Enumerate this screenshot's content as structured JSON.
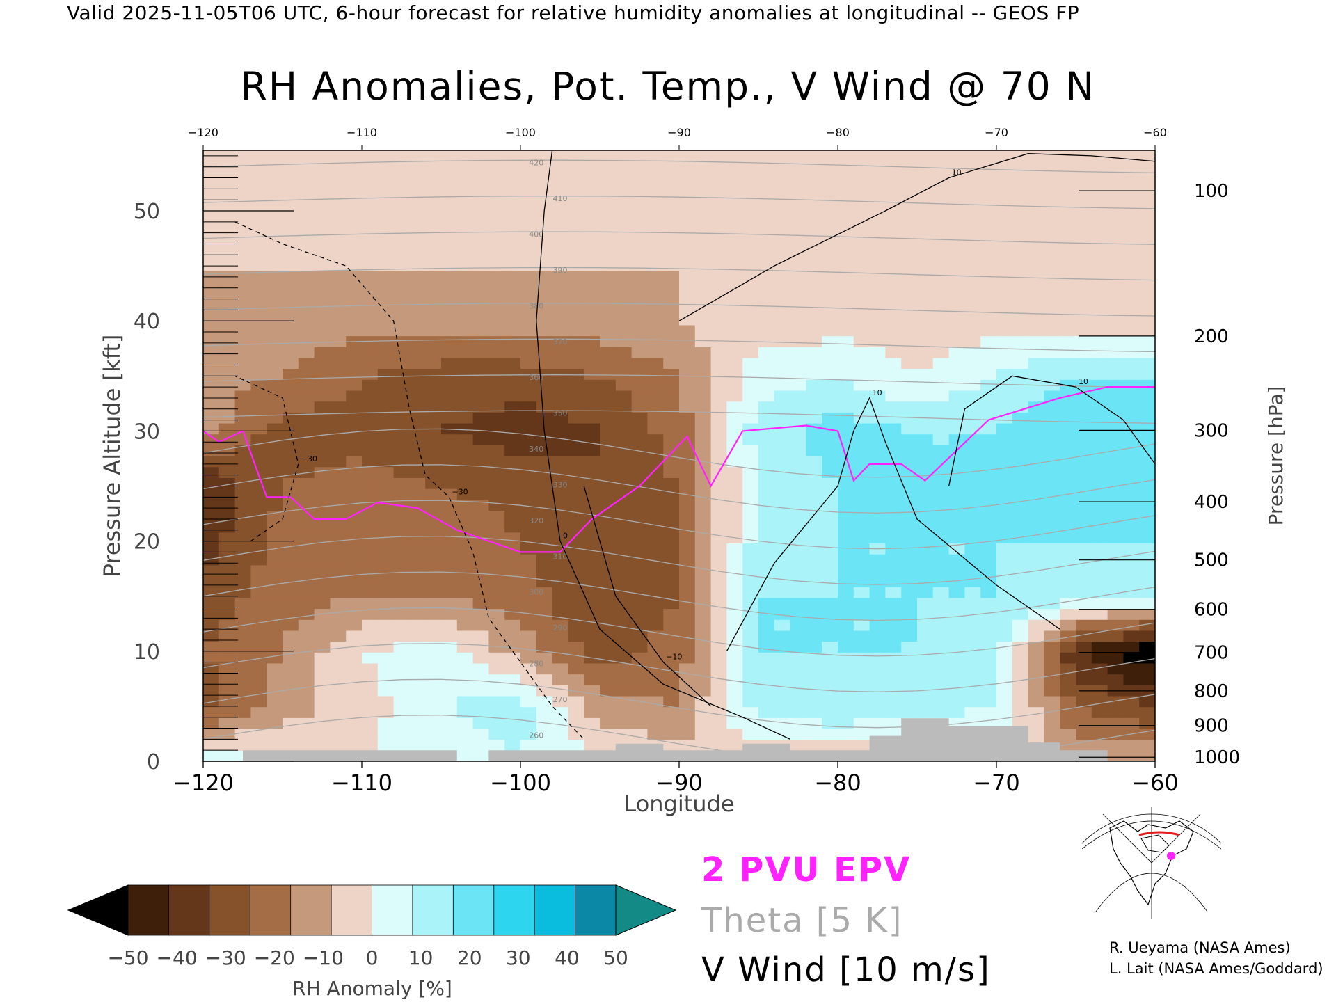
{
  "header": "Valid 2025-11-05T06 UTC, 6-hour forecast for relative humidity anomalies at longitudinal -- GEOS FP",
  "chart_data": {
    "type": "heatmap",
    "title": "RH Anomalies, Pot. Temp., V Wind @ 70 N",
    "xlabel": "Longitude",
    "ylabel": "Pressure Altitude [kft]",
    "y2label": "Pressure [hPa]",
    "xlim": [
      -120,
      -60
    ],
    "ylim": [
      0,
      55.5
    ],
    "x_ticks": [
      -120,
      -110,
      -100,
      -90,
      -80,
      -70,
      -60
    ],
    "x_tick_labels": [
      "−120",
      "−110",
      "−100",
      "−90",
      "−80",
      "−70",
      "−60"
    ],
    "x_top_tick_labels": [
      "−120",
      "−110",
      "−100",
      "−90",
      "−80",
      "−70",
      "−60"
    ],
    "y_ticks": [
      0,
      10,
      20,
      30,
      40,
      50
    ],
    "y_tick_labels": [
      "0",
      "10",
      "20",
      "30",
      "40",
      "50"
    ],
    "pressure_ticks": [
      {
        "hpa": 100,
        "label": "100"
      },
      {
        "hpa": 200,
        "label": "200"
      },
      {
        "hpa": 300,
        "label": "300"
      },
      {
        "hpa": 400,
        "label": "400"
      },
      {
        "hpa": 500,
        "label": "500"
      },
      {
        "hpa": 600,
        "label": "600"
      },
      {
        "hpa": 700,
        "label": "700"
      },
      {
        "hpa": 800,
        "label": "800"
      },
      {
        "hpa": 900,
        "label": "900"
      },
      {
        "hpa": 1000,
        "label": "1000"
      }
    ],
    "colorbar": {
      "label": "RH Anomaly [%]",
      "ticks": [
        -50,
        -40,
        -30,
        -20,
        -10,
        0,
        10,
        20,
        30,
        40,
        50
      ],
      "tick_labels": [
        "−50",
        "−40",
        "−30",
        "−20",
        "−10",
        "0",
        "10",
        "20",
        "30",
        "40",
        "50"
      ],
      "colors": [
        "#3e1f0a",
        "#64361a",
        "#86522b",
        "#a56d45",
        "#c59a7c",
        "#eed4c6",
        "#dcfbfb",
        "#a9f3f9",
        "#6be5f5",
        "#2dd5ef",
        "#0abcde",
        "#0a88a6"
      ],
      "under_color": "#000000",
      "over_color": "#138a86"
    },
    "rh_anomaly_grid": {
      "x": [
        -120,
        -115,
        -110,
        -105,
        -100,
        -95,
        -90,
        -85,
        -80,
        -75,
        -70,
        -65,
        -60
      ],
      "y": [
        0,
        5,
        10,
        15,
        20,
        25,
        30,
        35,
        40,
        45,
        50,
        55
      ],
      "values": [
        [
          15,
          15,
          10,
          15,
          20,
          10,
          5,
          0,
          0,
          0,
          0,
          0,
          0
        ],
        [
          -25,
          -5,
          5,
          20,
          25,
          -5,
          -10,
          25,
          30,
          25,
          20,
          -20,
          -30
        ],
        [
          -20,
          -10,
          10,
          15,
          -5,
          -25,
          -15,
          30,
          30,
          30,
          25,
          -40,
          -60
        ],
        [
          -25,
          -15,
          -10,
          -10,
          -15,
          -30,
          -20,
          30,
          30,
          30,
          30,
          25,
          20
        ],
        [
          -35,
          -15,
          -15,
          -10,
          -20,
          -30,
          -25,
          25,
          30,
          30,
          30,
          30,
          30
        ],
        [
          -40,
          -20,
          -15,
          -20,
          -25,
          -30,
          -20,
          20,
          30,
          30,
          30,
          35,
          35
        ],
        [
          -5,
          -25,
          -25,
          -30,
          -35,
          -30,
          -15,
          25,
          35,
          30,
          30,
          40,
          40
        ],
        [
          -5,
          -10,
          -20,
          -25,
          -25,
          -20,
          -10,
          15,
          20,
          10,
          20,
          30,
          30
        ],
        [
          -5,
          -5,
          -5,
          -5,
          -5,
          -5,
          0,
          5,
          5,
          5,
          5,
          5,
          5
        ],
        [
          0,
          0,
          0,
          0,
          0,
          0,
          0,
          0,
          0,
          0,
          0,
          0,
          0
        ],
        [
          0,
          0,
          0,
          0,
          0,
          0,
          0,
          0,
          0,
          0,
          0,
          0,
          0
        ],
        [
          0,
          0,
          0,
          0,
          0,
          0,
          0,
          0,
          0,
          0,
          0,
          0,
          0
        ]
      ]
    },
    "theta_contours": {
      "levels_k": [
        260,
        270,
        280,
        290,
        300,
        310,
        320,
        330,
        340,
        350,
        360,
        370,
        380,
        390,
        400,
        410,
        420
      ],
      "labels": [
        "260",
        "270",
        "280",
        "290",
        "300",
        "310",
        "320",
        "330",
        "340",
        "350",
        "360",
        "370",
        "380",
        "390",
        "400",
        "410",
        "420"
      ],
      "color": "#aaaaaa"
    },
    "epv_2pvu_line": {
      "color": "#ff22ff",
      "points": [
        [
          -120,
          30
        ],
        [
          -119,
          29
        ],
        [
          -117.5,
          30
        ],
        [
          -116,
          24
        ],
        [
          -114.5,
          24
        ],
        [
          -113,
          22
        ],
        [
          -111,
          22
        ],
        [
          -109,
          23.5
        ],
        [
          -106.5,
          23
        ],
        [
          -104,
          21
        ],
        [
          -100,
          19
        ],
        [
          -97.5,
          19
        ],
        [
          -95.5,
          22
        ],
        [
          -92.5,
          25
        ],
        [
          -89.5,
          29.5
        ],
        [
          -88,
          25
        ],
        [
          -86,
          30
        ],
        [
          -82,
          30.5
        ],
        [
          -80,
          30
        ],
        [
          -79,
          25.5
        ],
        [
          -78,
          27
        ],
        [
          -76,
          27
        ],
        [
          -74.5,
          25.5
        ],
        [
          -70.5,
          31
        ],
        [
          -66,
          33
        ],
        [
          -63,
          34
        ],
        [
          -60,
          34
        ]
      ]
    },
    "v_wind_contours": {
      "levels_ms": [
        -30,
        -10,
        0,
        10
      ],
      "labels": [
        "−30",
        "−10",
        "0",
        "10"
      ],
      "color": "#000000"
    },
    "terrain_color": "#bbbbbb",
    "terrain": [
      [
        -120,
        0
      ],
      [
        -117.5,
        0
      ],
      [
        -117.5,
        1
      ],
      [
        -104,
        1
      ],
      [
        -104,
        0
      ],
      [
        -102,
        0
      ],
      [
        -102,
        1
      ],
      [
        -94,
        1
      ],
      [
        -94,
        1.6
      ],
      [
        -91,
        1.6
      ],
      [
        -91,
        1
      ],
      [
        -86,
        1
      ],
      [
        -86,
        1.6
      ],
      [
        -83,
        1.6
      ],
      [
        -83,
        1
      ],
      [
        -78,
        1
      ],
      [
        -78,
        2.3
      ],
      [
        -76,
        2.3
      ],
      [
        -76,
        3.9
      ],
      [
        -73,
        3.9
      ],
      [
        -73,
        3.2
      ],
      [
        -68,
        3.2
      ],
      [
        -68,
        1.7
      ],
      [
        -66,
        1.7
      ],
      [
        -66,
        1
      ],
      [
        -63,
        1
      ],
      [
        -63,
        0
      ],
      [
        -60,
        0
      ]
    ]
  },
  "legend": {
    "epv": "2 PVU EPV",
    "theta": "Theta [5 K]",
    "vwind": "V Wind [10 m/s]"
  },
  "credits": {
    "line1": "R. Ueyama (NASA Ames)",
    "line2": "L. Lait (NASA Ames/Goddard)"
  }
}
